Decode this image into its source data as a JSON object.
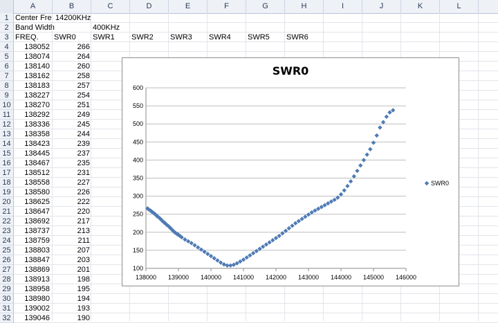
{
  "columns": [
    "A",
    "B",
    "C",
    "D",
    "E",
    "F",
    "G",
    "H",
    "I",
    "J",
    "K",
    "L"
  ],
  "rows": [
    "1",
    "2",
    "3",
    "4",
    "5",
    "6",
    "7",
    "8",
    "9",
    "10",
    "11",
    "12",
    "13",
    "14",
    "15",
    "16",
    "17",
    "18",
    "19",
    "20",
    "21",
    "22",
    "23",
    "24",
    "25",
    "26",
    "27",
    "28",
    "29",
    "30",
    "31",
    "32"
  ],
  "cells": {
    "a1": "Center Fre",
    "b1": "14200KHz",
    "a2": "Band Width",
    "c2": "400KHz",
    "a3": "FREQ.",
    "b3": "SWR0",
    "c3": "SWR1",
    "d3": "SWR2",
    "e3": "SWR3",
    "f3": "SWR4",
    "g3": "SWR5",
    "h3": "SWR6"
  },
  "data_rows": [
    [
      "138052",
      "266"
    ],
    [
      "138074",
      "264"
    ],
    [
      "138140",
      "260"
    ],
    [
      "138162",
      "258"
    ],
    [
      "138183",
      "257"
    ],
    [
      "138227",
      "254"
    ],
    [
      "138270",
      "251"
    ],
    [
      "138292",
      "249"
    ],
    [
      "138336",
      "245"
    ],
    [
      "138358",
      "244"
    ],
    [
      "138423",
      "239"
    ],
    [
      "138445",
      "237"
    ],
    [
      "138467",
      "235"
    ],
    [
      "138512",
      "231"
    ],
    [
      "138558",
      "227"
    ],
    [
      "138580",
      "226"
    ],
    [
      "138625",
      "222"
    ],
    [
      "138647",
      "220"
    ],
    [
      "138692",
      "217"
    ],
    [
      "138737",
      "213"
    ],
    [
      "138759",
      "211"
    ],
    [
      "138803",
      "207"
    ],
    [
      "138847",
      "203"
    ],
    [
      "138869",
      "201"
    ],
    [
      "138913",
      "198"
    ],
    [
      "138958",
      "195"
    ],
    [
      "138980",
      "194"
    ],
    [
      "139002",
      "193"
    ],
    [
      "139046",
      "190"
    ]
  ],
  "chart_data": {
    "type": "scatter",
    "title": "SWR0",
    "xlabel": "",
    "ylabel": "",
    "xlim": [
      138000,
      146000
    ],
    "ylim": [
      100,
      600
    ],
    "x_ticks": [
      "138000",
      "139000",
      "140000",
      "141000",
      "142000",
      "143000",
      "144000",
      "145000",
      "146000"
    ],
    "y_ticks": [
      "100",
      "150",
      "200",
      "250",
      "300",
      "350",
      "400",
      "450",
      "500",
      "550",
      "600"
    ],
    "grid": true,
    "legend_position": "right",
    "series": [
      {
        "name": "SWR0",
        "color": "#4f7bb5",
        "points": [
          [
            138052,
            266
          ],
          [
            138074,
            264
          ],
          [
            138140,
            260
          ],
          [
            138162,
            258
          ],
          [
            138183,
            257
          ],
          [
            138227,
            254
          ],
          [
            138270,
            251
          ],
          [
            138292,
            249
          ],
          [
            138336,
            245
          ],
          [
            138358,
            244
          ],
          [
            138423,
            239
          ],
          [
            138445,
            237
          ],
          [
            138467,
            235
          ],
          [
            138512,
            231
          ],
          [
            138558,
            227
          ],
          [
            138580,
            226
          ],
          [
            138625,
            222
          ],
          [
            138647,
            220
          ],
          [
            138692,
            217
          ],
          [
            138737,
            213
          ],
          [
            138759,
            211
          ],
          [
            138803,
            207
          ],
          [
            138847,
            203
          ],
          [
            138869,
            201
          ],
          [
            138913,
            198
          ],
          [
            138958,
            195
          ],
          [
            138980,
            194
          ],
          [
            139002,
            193
          ],
          [
            139046,
            190
          ],
          [
            139100,
            186
          ],
          [
            139200,
            180
          ],
          [
            139300,
            175
          ],
          [
            139400,
            170
          ],
          [
            139500,
            164
          ],
          [
            139600,
            158
          ],
          [
            139700,
            152
          ],
          [
            139800,
            146
          ],
          [
            139900,
            140
          ],
          [
            140000,
            134
          ],
          [
            140100,
            128
          ],
          [
            140200,
            122
          ],
          [
            140300,
            116
          ],
          [
            140400,
            111
          ],
          [
            140500,
            108
          ],
          [
            140600,
            108
          ],
          [
            140700,
            110
          ],
          [
            140800,
            114
          ],
          [
            140900,
            119
          ],
          [
            141000,
            124
          ],
          [
            141100,
            130
          ],
          [
            141200,
            136
          ],
          [
            141300,
            142
          ],
          [
            141400,
            148
          ],
          [
            141500,
            154
          ],
          [
            141600,
            160
          ],
          [
            141700,
            166
          ],
          [
            141800,
            172
          ],
          [
            141900,
            178
          ],
          [
            142000,
            184
          ],
          [
            142100,
            190
          ],
          [
            142200,
            197
          ],
          [
            142300,
            204
          ],
          [
            142400,
            211
          ],
          [
            142500,
            218
          ],
          [
            142600,
            225
          ],
          [
            142700,
            231
          ],
          [
            142800,
            237
          ],
          [
            142900,
            243
          ],
          [
            143000,
            249
          ],
          [
            143100,
            255
          ],
          [
            143200,
            260
          ],
          [
            143300,
            265
          ],
          [
            143400,
            270
          ],
          [
            143500,
            275
          ],
          [
            143600,
            280
          ],
          [
            143700,
            285
          ],
          [
            143800,
            290
          ],
          [
            143900,
            296
          ],
          [
            144000,
            305
          ],
          [
            144100,
            316
          ],
          [
            144200,
            328
          ],
          [
            144300,
            341
          ],
          [
            144400,
            355
          ],
          [
            144500,
            370
          ],
          [
            144600,
            385
          ],
          [
            144700,
            400
          ],
          [
            144800,
            415
          ],
          [
            144900,
            430
          ],
          [
            145000,
            448
          ],
          [
            145100,
            468
          ],
          [
            145200,
            490
          ],
          [
            145300,
            505
          ],
          [
            145400,
            520
          ],
          [
            145500,
            532
          ],
          [
            145600,
            538
          ]
        ]
      }
    ]
  }
}
